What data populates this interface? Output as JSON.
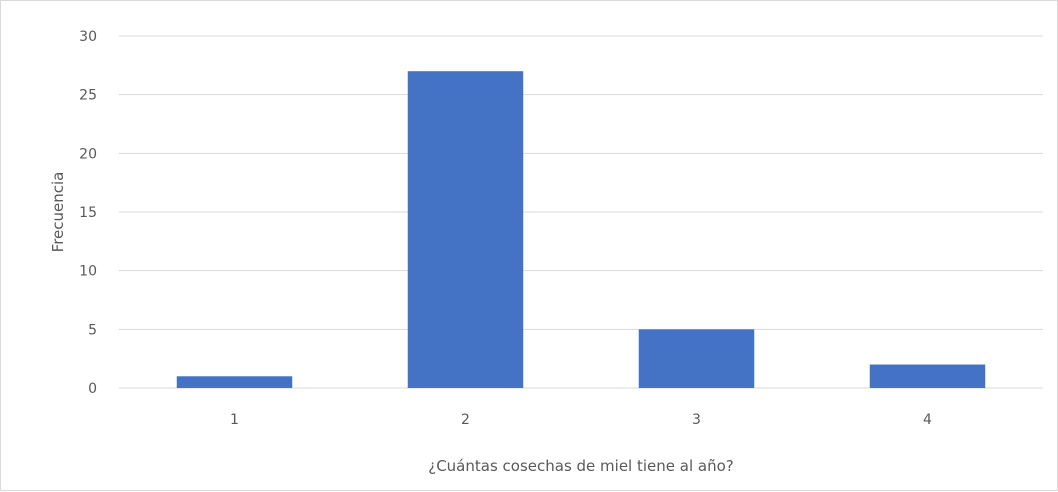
{
  "chart_data": {
    "type": "bar",
    "categories": [
      "1",
      "2",
      "3",
      "4"
    ],
    "values": [
      1,
      27,
      5,
      2
    ],
    "xlabel": "¿Cuántas cosechas de miel tiene al año?",
    "ylabel": "Frecuencia",
    "ylim": [
      0,
      30
    ],
    "yticks": [
      0,
      5,
      10,
      15,
      20,
      25,
      30
    ],
    "grid": true,
    "legend": "none",
    "bar_color": "#4472c4",
    "grid_color": "#d9d9d9"
  }
}
